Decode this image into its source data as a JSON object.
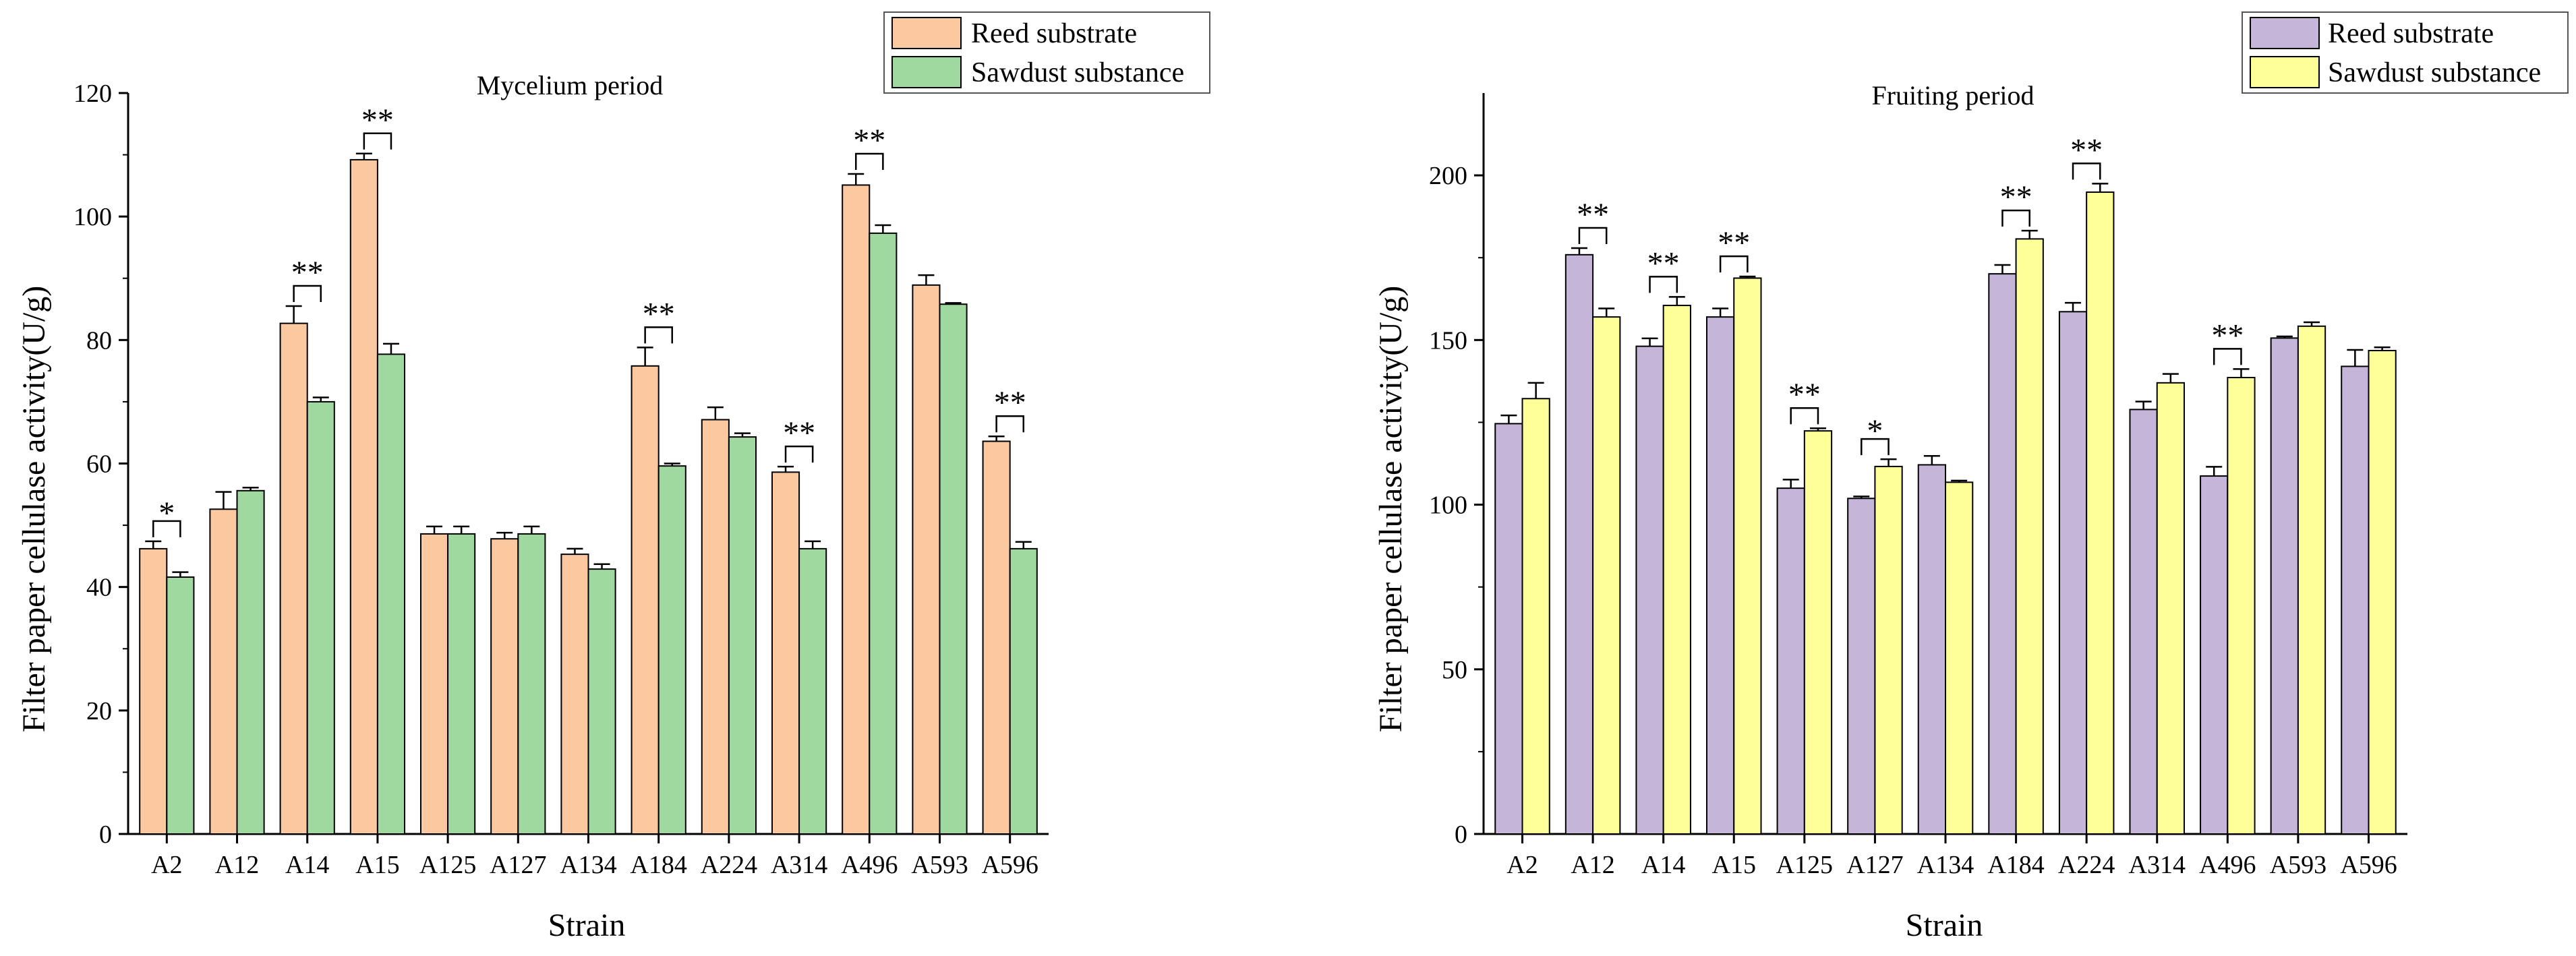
{
  "chart_data": [
    {
      "type": "bar",
      "title": "Mycelium period",
      "xlabel": "Strain",
      "ylabel": "Filter paper cellulase activity(U/g)",
      "ylim": [
        0,
        120
      ],
      "yticks": [
        0,
        20,
        40,
        60,
        80,
        100,
        120
      ],
      "categories": [
        "A2",
        "A12",
        "A14",
        "A15",
        "A125",
        "A127",
        "A134",
        "A184",
        "A224",
        "A314",
        "A496",
        "A593",
        "A596"
      ],
      "series": [
        {
          "name": "Reed substrate",
          "color": "#FBC8A0",
          "values": [
            46.2,
            52.6,
            82.7,
            109.2,
            48.6,
            47.8,
            45.3,
            75.8,
            67.1,
            58.6,
            105.1,
            88.9,
            63.6
          ],
          "errors": [
            1.2,
            2.8,
            2.8,
            1.0,
            1.2,
            1.0,
            0.9,
            3.0,
            2.0,
            0.9,
            1.8,
            1.6,
            0.8
          ]
        },
        {
          "name": "Sawdust substance",
          "color": "#A0D9A0",
          "values": [
            41.6,
            55.6,
            70.0,
            77.7,
            48.6,
            48.6,
            42.9,
            59.6,
            64.3,
            46.2,
            97.3,
            85.8,
            46.2
          ],
          "errors": [
            0.8,
            0.5,
            0.7,
            1.7,
            1.2,
            1.2,
            0.8,
            0.4,
            0.6,
            1.2,
            1.3,
            0.2,
            1.1
          ]
        }
      ],
      "annotations": [
        {
          "category": "A2",
          "label": "*"
        },
        {
          "category": "A14",
          "label": "**"
        },
        {
          "category": "A15",
          "label": "**"
        },
        {
          "category": "A184",
          "label": "**"
        },
        {
          "category": "A314",
          "label": "**"
        },
        {
          "category": "A496",
          "label": "**"
        },
        {
          "category": "A596",
          "label": "**"
        }
      ],
      "legend": "top-right"
    },
    {
      "type": "bar",
      "title": "Fruiting period",
      "xlabel": "Strain",
      "ylabel": "Filter paper cellulase activity(U/g)",
      "ylim": [
        0,
        225
      ],
      "yticks": [
        0,
        50,
        100,
        150,
        200
      ],
      "categories": [
        "A2",
        "A12",
        "A14",
        "A15",
        "A125",
        "A127",
        "A134",
        "A184",
        "A224",
        "A314",
        "A496",
        "A593",
        "A596"
      ],
      "series": [
        {
          "name": "Reed substrate",
          "color": "#C5B5D9",
          "values": [
            124.6,
            175.9,
            148.1,
            157.0,
            105.0,
            101.9,
            112.1,
            170.1,
            158.6,
            128.9,
            108.7,
            150.6,
            142.0
          ],
          "errors": [
            2.5,
            2.0,
            2.4,
            2.6,
            2.6,
            0.6,
            2.7,
            2.7,
            2.7,
            2.4,
            2.8,
            0.5,
            5.0
          ]
        },
        {
          "name": "Sawdust substance",
          "color": "#FFFF99",
          "values": [
            132.2,
            157.0,
            160.5,
            168.8,
            122.4,
            111.6,
            106.8,
            180.7,
            194.9,
            137.0,
            138.6,
            154.2,
            146.8
          ],
          "errors": [
            4.8,
            2.6,
            2.6,
            0.5,
            0.8,
            2.2,
            0.5,
            2.5,
            2.6,
            2.7,
            2.6,
            1.2,
            1.0
          ]
        }
      ],
      "annotations": [
        {
          "category": "A12",
          "label": "**"
        },
        {
          "category": "A14",
          "label": "**"
        },
        {
          "category": "A15",
          "label": "**"
        },
        {
          "category": "A125",
          "label": "**"
        },
        {
          "category": "A127",
          "label": "*"
        },
        {
          "category": "A184",
          "label": "**"
        },
        {
          "category": "A224",
          "label": "**"
        },
        {
          "category": "A496",
          "label": "**"
        }
      ],
      "legend": "top-right"
    }
  ]
}
